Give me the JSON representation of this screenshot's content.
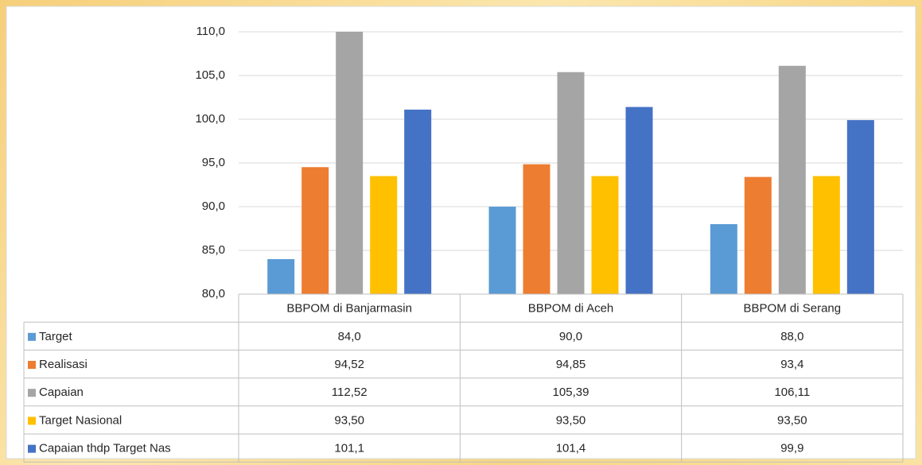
{
  "chart_data": {
    "type": "bar",
    "categories": [
      "BBPOM di Banjarmasin",
      "BBPOM di Aceh",
      "BBPOM di Serang"
    ],
    "series": [
      {
        "name": "Target",
        "color": "#5b9bd5",
        "values": [
          84.0,
          90.0,
          88.0
        ],
        "value_labels": [
          "84,0",
          "90,0",
          "88,0"
        ]
      },
      {
        "name": "Realisasi",
        "color": "#ed7d31",
        "values": [
          94.52,
          94.85,
          93.4
        ],
        "value_labels": [
          "94,52",
          "94,85",
          "93,4"
        ]
      },
      {
        "name": "Capaian",
        "color": "#a5a5a5",
        "values": [
          112.52,
          105.39,
          106.11
        ],
        "value_labels": [
          "112,52",
          "105,39",
          "106,11"
        ]
      },
      {
        "name": "Target Nasional",
        "color": "#ffc000",
        "values": [
          93.5,
          93.5,
          93.5
        ],
        "value_labels": [
          "93,50",
          "93,50",
          "93,50"
        ]
      },
      {
        "name": "Capaian thdp Target Nas",
        "color": "#4472c4",
        "values": [
          101.1,
          101.4,
          99.9
        ],
        "value_labels": [
          "101,1",
          "101,4",
          "99,9"
        ]
      }
    ],
    "ylim": [
      80,
      110
    ],
    "yticks": [
      {
        "value": 80,
        "label": "80,0"
      },
      {
        "value": 85,
        "label": "85,0"
      },
      {
        "value": 90,
        "label": "90,0"
      },
      {
        "value": 95,
        "label": "95,0"
      },
      {
        "value": 100,
        "label": "100,0"
      },
      {
        "value": 105,
        "label": "105,0"
      },
      {
        "value": 110,
        "label": "110,0"
      }
    ],
    "grid": true
  }
}
